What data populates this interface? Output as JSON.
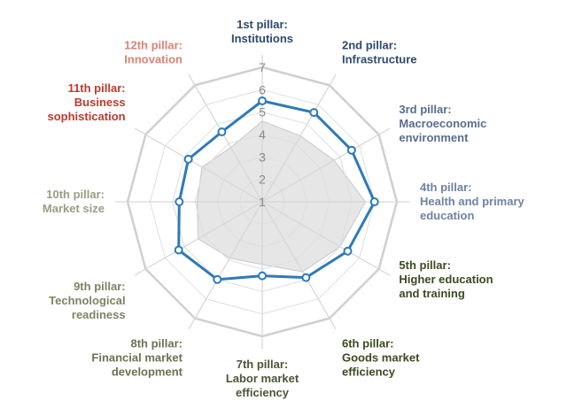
{
  "chart_data": {
    "type": "radar",
    "title": "",
    "scale": {
      "min": 1,
      "max": 7,
      "ticks": [
        "1",
        "2",
        "3",
        "4",
        "5",
        "6",
        "7"
      ]
    },
    "grid": true,
    "categories": [
      {
        "lines": [
          "1st pillar:",
          "Institutions"
        ],
        "color": "#2e4a6e"
      },
      {
        "lines": [
          "2nd pillar:",
          "Infrastructure"
        ],
        "color": "#2e4a6e"
      },
      {
        "lines": [
          "3rd pillar:",
          "Macroeconomic",
          "environment"
        ],
        "color": "#596d8f"
      },
      {
        "lines": [
          "4th pillar:",
          "Health and primary",
          "education"
        ],
        "color": "#6f81a5"
      },
      {
        "lines": [
          "5th pillar:",
          "Higher education",
          "and training"
        ],
        "color": "#3b4a1f"
      },
      {
        "lines": [
          "6th pillar:",
          "Goods market",
          "efficiency"
        ],
        "color": "#3b4a1f"
      },
      {
        "lines": [
          "7th pillar:",
          "Labor market",
          "efficiency"
        ],
        "color": "#4a5634"
      },
      {
        "lines": [
          "8th pillar:",
          "Financial market",
          "development"
        ],
        "color": "#6a7352"
      },
      {
        "lines": [
          "9th pillar:",
          "Technological",
          "readiness"
        ],
        "color": "#7d8463"
      },
      {
        "lines": [
          "10th pillar:",
          "Market size"
        ],
        "color": "#9a9d84"
      },
      {
        "lines": [
          "11th pillar:",
          "Business",
          "sophistication"
        ],
        "color": "#c0392b"
      },
      {
        "lines": [
          "12th pillar:",
          "Innovation"
        ],
        "color": "#d98374"
      }
    ],
    "series": [
      {
        "values": [
          5.5,
          5.6,
          5.6,
          6.0,
          5.4,
          4.9,
          4.3,
          5.0,
          5.3,
          4.7,
          4.8,
          4.6
        ],
        "color": "#2e7ab8"
      },
      {
        "values": [
          4.6,
          4.4,
          4.7,
          5.6,
          5.0,
          4.6,
          3.8,
          3.9,
          4.3,
          3.9,
          4.1,
          3.8
        ],
        "color": "#e6e6e6"
      }
    ]
  }
}
